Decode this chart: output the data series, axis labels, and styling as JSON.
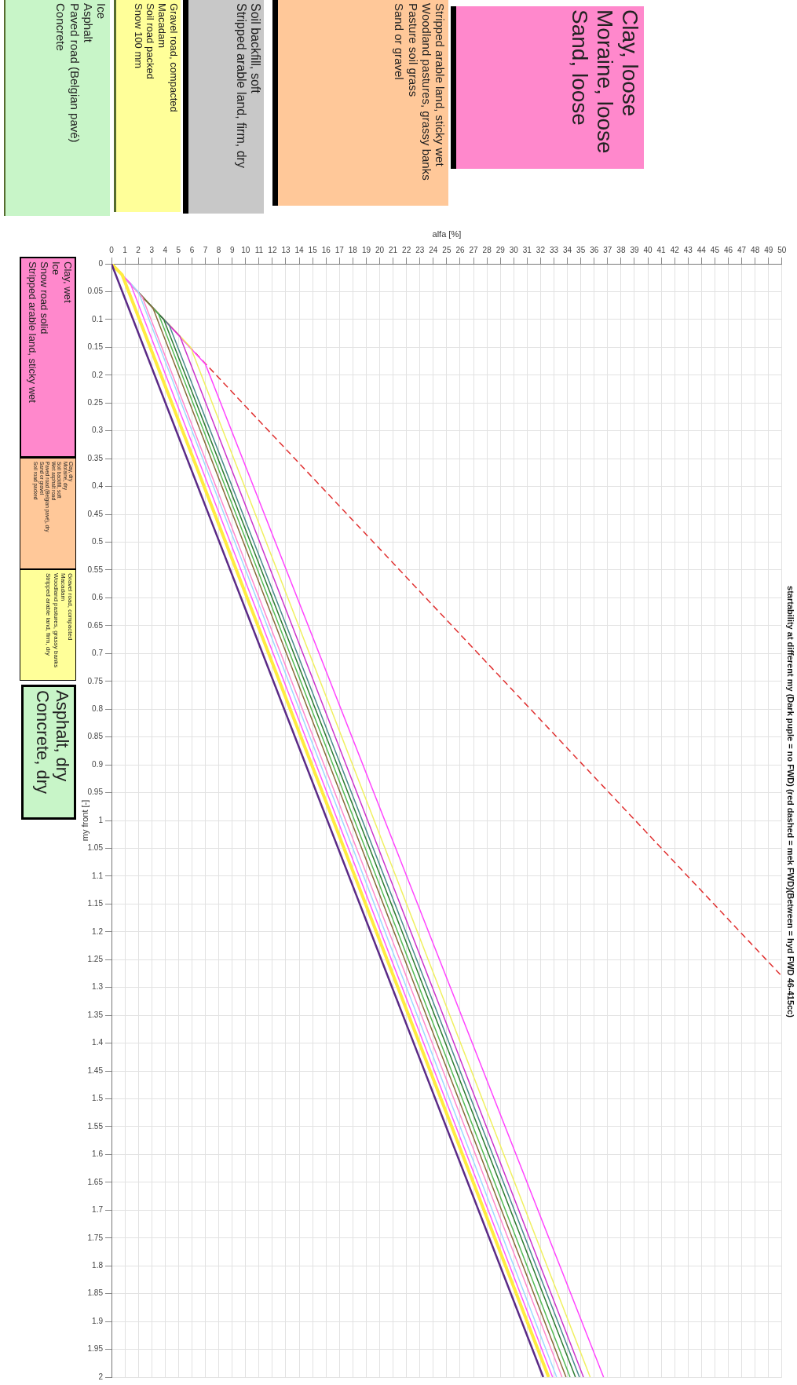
{
  "chart_data": {
    "type": "line",
    "title": "startability at different my (Dark puple = no FWD) (red dashed = mek FWD)(Between = hyd FWD 46-415cc)",
    "xlabel": "alfa [%]",
    "ylabel": "my front [-]",
    "ylim": [
      2,
      0
    ],
    "yticks": [
      0,
      0.05,
      0.1,
      0.15,
      0.2,
      0.25,
      0.3,
      0.35,
      0.4,
      0.45,
      0.5,
      0.55,
      0.6,
      0.65,
      0.7,
      0.75,
      0.8,
      0.85,
      0.9,
      0.95,
      1,
      1.05,
      1.1,
      1.15,
      1.2,
      1.25,
      1.3,
      1.35,
      1.4,
      1.45,
      1.5,
      1.55,
      1.6,
      1.65,
      1.7,
      1.75,
      1.8,
      1.85,
      1.9,
      1.95,
      2
    ],
    "xlim": [
      0,
      50
    ],
    "xticks": [
      0,
      1,
      2,
      3,
      4,
      5,
      6,
      7,
      8,
      9,
      10,
      11,
      12,
      13,
      14,
      15,
      16,
      17,
      18,
      19,
      20,
      21,
      22,
      23,
      24,
      25,
      26,
      27,
      28,
      29,
      30,
      31,
      32,
      33,
      34,
      35,
      36,
      37,
      38,
      39,
      40,
      41,
      42,
      43,
      44,
      45,
      46,
      47,
      48,
      49,
      50
    ],
    "grid": true,
    "legend": false,
    "marker": "none",
    "line_style": "solid",
    "series": [
      {
        "color": "#5b2a86",
        "x": [
          0,
          32.2
        ],
        "values": [
          0,
          2
        ]
      },
      {
        "color": "#ffec40",
        "x": [
          0,
          0.8,
          32.6
        ],
        "values": [
          0,
          0.02,
          2
        ]
      },
      {
        "color": "#ff55ff",
        "x": [
          0,
          1.4,
          32.9
        ],
        "values": [
          0,
          0.035,
          2
        ]
      },
      {
        "color": "#9fd8ff",
        "x": [
          0,
          2.0,
          33.2
        ],
        "values": [
          0,
          0.05,
          2
        ]
      },
      {
        "color": "#ff88cc",
        "x": [
          0,
          2.3,
          33.6
        ],
        "values": [
          0,
          0.06,
          2
        ]
      },
      {
        "color": "#8a6a3a",
        "x": [
          0,
          3.1,
          33.9
        ],
        "values": [
          0,
          0.08,
          2
        ]
      },
      {
        "color": "#55bb55",
        "x": [
          0,
          3.5,
          34.2
        ],
        "values": [
          0,
          0.09,
          2
        ]
      },
      {
        "color": "#2e7d32",
        "x": [
          0,
          3.9,
          34.6
        ],
        "values": [
          0,
          0.1,
          2
        ]
      },
      {
        "color": "#4a8a8a",
        "x": [
          0,
          4.3,
          34.9
        ],
        "values": [
          0,
          0.11,
          2
        ]
      },
      {
        "color": "#cc33cc",
        "x": [
          0,
          5.1,
          35.2
        ],
        "values": [
          0,
          0.13,
          2
        ]
      },
      {
        "color": "#f0f060",
        "x": [
          0,
          5.9,
          35.7
        ],
        "values": [
          0,
          0.15,
          2
        ]
      },
      {
        "color": "#ff44ff",
        "x": [
          0,
          7.0,
          36.7
        ],
        "values": [
          0,
          0.18,
          2
        ]
      },
      {
        "color": "#e03030",
        "line_style": "dashed",
        "x": [
          0,
          50
        ],
        "values": [
          0,
          1.28
        ]
      }
    ],
    "annotations": [
      "Clay, loose\nMoraine, loose\nSand, loose",
      "Stripped arable land, sticky wet\nWoodland pastures, grassy banks\nPasture soil grass\nSand or gravel",
      "Soil backfill, soft\nStripped arable land, firm, dry",
      "Gravel road, compacted\nMacadam\nSoil road packed\nSnow 100 mm",
      "Ice\nAsphalt\nPaved road (Belgian pavé)\nConcrete",
      "Clay, wet\nIce\nSnow road solid\nStripped arable land, sticky wet",
      "Clay, dry\nMoraine, dry\nSoil backfill, soft\nWet asphalt road\nPaved road (Belgian pavé), dry\nSand or gravel\nSoil road packed",
      "Gravel road, compacted\nMacadam\nWoodland pastures, grassy banks\nStripped arable land, firm, dry",
      "Asphalt, dry\nConcrete, dry"
    ]
  }
}
